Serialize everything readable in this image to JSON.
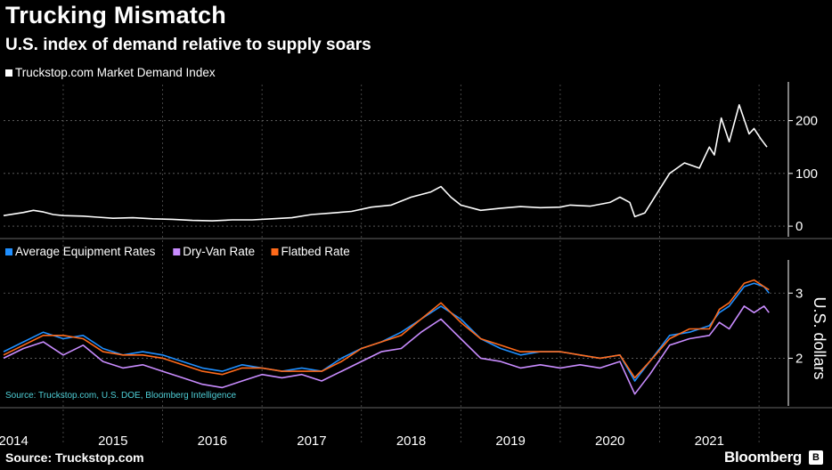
{
  "header": {
    "title": "Trucking Mismatch",
    "subtitle": "U.S. index of demand relative to supply soars"
  },
  "footer": {
    "source": "Source: Truckstop.com",
    "brand": "Bloomberg",
    "brand_logo": "B"
  },
  "chart_data": [
    {
      "type": "line",
      "legend": [
        {
          "name": "Truckstop.com Market Demand Index",
          "color": "#ffffff"
        }
      ],
      "yticks": [
        "200",
        "100",
        "0"
      ],
      "ylim": [
        -10,
        260
      ],
      "series": [
        {
          "name": "Truckstop.com Market Demand Index",
          "color": "#ffffff",
          "points": [
            [
              2013.9,
              20
            ],
            [
              2014.0,
              23
            ],
            [
              2014.1,
              26
            ],
            [
              2014.2,
              30
            ],
            [
              2014.3,
              27
            ],
            [
              2014.4,
              22
            ],
            [
              2014.5,
              20
            ],
            [
              2014.7,
              19
            ],
            [
              2014.85,
              17
            ],
            [
              2015.0,
              15
            ],
            [
              2015.2,
              16
            ],
            [
              2015.4,
              14
            ],
            [
              2015.6,
              13
            ],
            [
              2015.8,
              11
            ],
            [
              2016.0,
              10
            ],
            [
              2016.2,
              12
            ],
            [
              2016.4,
              12
            ],
            [
              2016.6,
              14
            ],
            [
              2016.8,
              16
            ],
            [
              2017.0,
              22
            ],
            [
              2017.2,
              25
            ],
            [
              2017.4,
              28
            ],
            [
              2017.6,
              36
            ],
            [
              2017.8,
              40
            ],
            [
              2018.0,
              55
            ],
            [
              2018.2,
              65
            ],
            [
              2018.3,
              75
            ],
            [
              2018.4,
              55
            ],
            [
              2018.5,
              40
            ],
            [
              2018.7,
              30
            ],
            [
              2018.9,
              34
            ],
            [
              2019.1,
              37
            ],
            [
              2019.3,
              35
            ],
            [
              2019.5,
              36
            ],
            [
              2019.6,
              40
            ],
            [
              2019.8,
              38
            ],
            [
              2020.0,
              45
            ],
            [
              2020.1,
              55
            ],
            [
              2020.2,
              45
            ],
            [
              2020.25,
              18
            ],
            [
              2020.35,
              25
            ],
            [
              2020.5,
              70
            ],
            [
              2020.6,
              100
            ],
            [
              2020.75,
              120
            ],
            [
              2020.9,
              110
            ],
            [
              2021.0,
              150
            ],
            [
              2021.05,
              135
            ],
            [
              2021.12,
              205
            ],
            [
              2021.2,
              160
            ],
            [
              2021.3,
              230
            ],
            [
              2021.4,
              175
            ],
            [
              2021.45,
              185
            ],
            [
              2021.52,
              165
            ],
            [
              2021.58,
              150
            ]
          ]
        }
      ]
    },
    {
      "type": "line",
      "legend": [
        {
          "name": "Average Equipment Rates",
          "color": "#1f8fff"
        },
        {
          "name": "Dry-Van Rate",
          "color": "#c98cff"
        },
        {
          "name": "Flatbed Rate",
          "color": "#ff6a1a"
        }
      ],
      "ylabel": "U.S. dollars",
      "yticks": [
        "3",
        "2"
      ],
      "ylim": [
        1.35,
        3.4
      ],
      "annotation": "Source: Truckstop.com, U.S. DOE, Bloomberg Intelligence",
      "series": [
        {
          "name": "Dry-Van Rate",
          "color": "#c98cff",
          "points": [
            [
              2013.9,
              2.0
            ],
            [
              2014.1,
              2.15
            ],
            [
              2014.3,
              2.25
            ],
            [
              2014.5,
              2.05
            ],
            [
              2014.7,
              2.2
            ],
            [
              2014.9,
              1.95
            ],
            [
              2015.1,
              1.85
            ],
            [
              2015.3,
              1.9
            ],
            [
              2015.5,
              1.8
            ],
            [
              2015.7,
              1.7
            ],
            [
              2015.9,
              1.6
            ],
            [
              2016.1,
              1.55
            ],
            [
              2016.3,
              1.65
            ],
            [
              2016.5,
              1.75
            ],
            [
              2016.7,
              1.7
            ],
            [
              2016.9,
              1.75
            ],
            [
              2017.1,
              1.65
            ],
            [
              2017.3,
              1.8
            ],
            [
              2017.5,
              1.95
            ],
            [
              2017.7,
              2.1
            ],
            [
              2017.9,
              2.15
            ],
            [
              2018.1,
              2.4
            ],
            [
              2018.3,
              2.6
            ],
            [
              2018.5,
              2.3
            ],
            [
              2018.7,
              2.0
            ],
            [
              2018.9,
              1.95
            ],
            [
              2019.1,
              1.85
            ],
            [
              2019.3,
              1.9
            ],
            [
              2019.5,
              1.85
            ],
            [
              2019.7,
              1.9
            ],
            [
              2019.9,
              1.85
            ],
            [
              2020.1,
              1.95
            ],
            [
              2020.25,
              1.45
            ],
            [
              2020.4,
              1.75
            ],
            [
              2020.6,
              2.2
            ],
            [
              2020.8,
              2.3
            ],
            [
              2021.0,
              2.35
            ],
            [
              2021.1,
              2.55
            ],
            [
              2021.2,
              2.45
            ],
            [
              2021.35,
              2.8
            ],
            [
              2021.45,
              2.7
            ],
            [
              2021.55,
              2.8
            ],
            [
              2021.6,
              2.7
            ]
          ]
        },
        {
          "name": "Average Equipment Rates",
          "color": "#1f8fff",
          "points": [
            [
              2013.9,
              2.1
            ],
            [
              2014.1,
              2.25
            ],
            [
              2014.3,
              2.4
            ],
            [
              2014.5,
              2.3
            ],
            [
              2014.7,
              2.35
            ],
            [
              2014.9,
              2.15
            ],
            [
              2015.1,
              2.05
            ],
            [
              2015.3,
              2.1
            ],
            [
              2015.5,
              2.05
            ],
            [
              2015.7,
              1.95
            ],
            [
              2015.9,
              1.85
            ],
            [
              2016.1,
              1.8
            ],
            [
              2016.3,
              1.9
            ],
            [
              2016.5,
              1.85
            ],
            [
              2016.7,
              1.8
            ],
            [
              2016.9,
              1.85
            ],
            [
              2017.1,
              1.8
            ],
            [
              2017.3,
              2.0
            ],
            [
              2017.5,
              2.15
            ],
            [
              2017.7,
              2.25
            ],
            [
              2017.9,
              2.4
            ],
            [
              2018.1,
              2.6
            ],
            [
              2018.3,
              2.8
            ],
            [
              2018.5,
              2.6
            ],
            [
              2018.7,
              2.3
            ],
            [
              2018.9,
              2.15
            ],
            [
              2019.1,
              2.05
            ],
            [
              2019.3,
              2.1
            ],
            [
              2019.5,
              2.1
            ],
            [
              2019.7,
              2.05
            ],
            [
              2019.9,
              2.0
            ],
            [
              2020.1,
              2.05
            ],
            [
              2020.25,
              1.65
            ],
            [
              2020.4,
              1.95
            ],
            [
              2020.6,
              2.35
            ],
            [
              2020.8,
              2.4
            ],
            [
              2021.0,
              2.5
            ],
            [
              2021.1,
              2.7
            ],
            [
              2021.2,
              2.8
            ],
            [
              2021.35,
              3.1
            ],
            [
              2021.45,
              3.15
            ],
            [
              2021.55,
              3.1
            ],
            [
              2021.6,
              3.0
            ]
          ]
        },
        {
          "name": "Flatbed Rate",
          "color": "#ff6a1a",
          "points": [
            [
              2013.9,
              2.05
            ],
            [
              2014.1,
              2.2
            ],
            [
              2014.3,
              2.35
            ],
            [
              2014.5,
              2.35
            ],
            [
              2014.7,
              2.3
            ],
            [
              2014.9,
              2.1
            ],
            [
              2015.1,
              2.05
            ],
            [
              2015.3,
              2.05
            ],
            [
              2015.5,
              2.0
            ],
            [
              2015.7,
              1.9
            ],
            [
              2015.9,
              1.8
            ],
            [
              2016.1,
              1.75
            ],
            [
              2016.3,
              1.85
            ],
            [
              2016.5,
              1.85
            ],
            [
              2016.7,
              1.8
            ],
            [
              2016.9,
              1.8
            ],
            [
              2017.1,
              1.8
            ],
            [
              2017.3,
              1.95
            ],
            [
              2017.5,
              2.15
            ],
            [
              2017.7,
              2.25
            ],
            [
              2017.9,
              2.35
            ],
            [
              2018.1,
              2.6
            ],
            [
              2018.3,
              2.85
            ],
            [
              2018.5,
              2.55
            ],
            [
              2018.7,
              2.3
            ],
            [
              2018.9,
              2.2
            ],
            [
              2019.1,
              2.1
            ],
            [
              2019.3,
              2.1
            ],
            [
              2019.5,
              2.1
            ],
            [
              2019.7,
              2.05
            ],
            [
              2019.9,
              2.0
            ],
            [
              2020.1,
              2.05
            ],
            [
              2020.25,
              1.7
            ],
            [
              2020.4,
              1.95
            ],
            [
              2020.6,
              2.3
            ],
            [
              2020.8,
              2.45
            ],
            [
              2021.0,
              2.45
            ],
            [
              2021.1,
              2.75
            ],
            [
              2021.2,
              2.85
            ],
            [
              2021.35,
              3.15
            ],
            [
              2021.45,
              3.2
            ],
            [
              2021.55,
              3.1
            ],
            [
              2021.6,
              3.05
            ]
          ]
        }
      ]
    }
  ],
  "xaxis": {
    "labels": [
      "2014",
      "2015",
      "2016",
      "2017",
      "2018",
      "2019",
      "2020",
      "2021"
    ],
    "xlim": [
      2013.9,
      2021.75
    ]
  }
}
